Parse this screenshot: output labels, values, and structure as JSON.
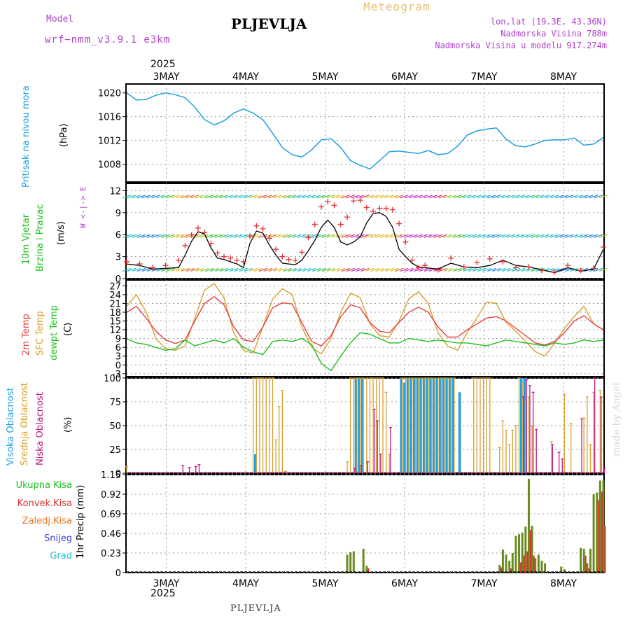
{
  "header": {
    "model_label": "Model",
    "model_name": "wrf−nmm_v3.9.1  e3km",
    "station": "PLJEVLJA",
    "product": "Meteogram",
    "coords": "lon,lat (19.3E, 43.36N)",
    "elevation": "Nadmorska Visina 788m",
    "model_elevation": "Nadmorska Visina u modelu 917.274m",
    "year": "2025",
    "footer_station": "PLJEVLJA",
    "credit": "made by Angel"
  },
  "colors": {
    "pressure": "#20a0e0",
    "wind_speed": "#000000",
    "gust": "#e83030",
    "temp2m": "#e84040",
    "sfc_temp": "#d8a030",
    "dewpt": "#20c020",
    "high_cloud": "#20a0e0",
    "mid_cloud": "#d8a030",
    "low_cloud": "#c01880",
    "total_precip": "#6a8a20",
    "conv_precip": "#e03030"
  },
  "chart_data": [
    {
      "type": "line",
      "id": "pressure",
      "title": "Pritisak na nivou mora",
      "ylabel": "(hPa)",
      "ylim": [
        1005,
        1021.5
      ],
      "yticks": [
        1008,
        1012,
        1016,
        1020
      ],
      "x_days": [
        "3MAY",
        "4MAY",
        "5MAY",
        "6MAY",
        "7MAY",
        "8MAY"
      ],
      "x": [
        0,
        3,
        6,
        9,
        12,
        15,
        18,
        21,
        24,
        27,
        30,
        33,
        36,
        39,
        42,
        45,
        48,
        51,
        54,
        57,
        60,
        63,
        66,
        69,
        72,
        75,
        78,
        81,
        84,
        87,
        90,
        93,
        96,
        99,
        102,
        105,
        108,
        111,
        114,
        117,
        120,
        123,
        126,
        129,
        132,
        135,
        138,
        141,
        144,
        147
      ],
      "values": [
        1020.0,
        1018.8,
        1018.9,
        1019.6,
        1020.0,
        1019.7,
        1019.2,
        1017.6,
        1015.5,
        1014.6,
        1015.3,
        1016.6,
        1017.3,
        1016.6,
        1015.5,
        1013.2,
        1010.8,
        1009.6,
        1009.2,
        1010.4,
        1012.1,
        1012.3,
        1010.8,
        1008.6,
        1007.8,
        1007.2,
        1008.6,
        1010.1,
        1010.2,
        1010.0,
        1009.8,
        1010.3,
        1009.6,
        1009.8,
        1011.0,
        1012.9,
        1013.6,
        1013.9,
        1014.1,
        1012.2,
        1011.1,
        1010.9,
        1011.4,
        1012.0,
        1012.1,
        1012.1,
        1012.4,
        1011.2,
        1011.4,
        1012.5
      ]
    },
    {
      "type": "line",
      "id": "wind",
      "title": "10m Vjetar",
      "subtitle": "Brzina i Pravac",
      "ylabel": "(m/s)",
      "compass": "W <-|-> E",
      "ylim": [
        0,
        13
      ],
      "yticks": [
        0,
        3,
        6,
        9,
        12
      ],
      "series": [
        {
          "name": "speed",
          "x": [
            0,
            4,
            8,
            12,
            16,
            18,
            20,
            22,
            24,
            26,
            28,
            30,
            32,
            34,
            36,
            38,
            40,
            42,
            44,
            46,
            48,
            50,
            52,
            54,
            56,
            58,
            60,
            62,
            64,
            66,
            68,
            70,
            72,
            74,
            76,
            78,
            80,
            82,
            84,
            86,
            88,
            90,
            92,
            96,
            100,
            104,
            108,
            112,
            116,
            120,
            124,
            128,
            132,
            136,
            140,
            144,
            147
          ],
          "values": [
            2.0,
            1.8,
            1.3,
            1.4,
            1.5,
            3.2,
            5.1,
            6.4,
            6.1,
            4.2,
            2.8,
            2.6,
            2.3,
            2.0,
            1.5,
            4.8,
            6.5,
            6.2,
            4.6,
            3.2,
            2.1,
            2.0,
            1.9,
            2.5,
            3.8,
            5.2,
            7.0,
            8.0,
            7.0,
            5.0,
            4.6,
            5.0,
            5.7,
            7.6,
            8.9,
            9.0,
            8.5,
            7.0,
            4.0,
            3.0,
            2.1,
            1.6,
            1.5,
            1.3,
            2.1,
            1.6,
            1.5,
            1.8,
            2.5,
            1.8,
            1.6,
            1.2,
            0.8,
            1.5,
            1.0,
            1.3,
            4.0
          ]
        },
        {
          "name": "gust",
          "x": [
            0,
            4,
            8,
            12,
            16,
            18,
            20,
            22,
            24,
            26,
            28,
            30,
            32,
            34,
            36,
            38,
            40,
            42,
            44,
            46,
            48,
            50,
            52,
            54,
            56,
            58,
            60,
            62,
            64,
            66,
            68,
            70,
            72,
            74,
            76,
            78,
            80,
            82,
            84,
            86,
            88,
            90,
            92,
            96,
            100,
            104,
            108,
            112,
            116,
            120,
            124,
            128,
            132,
            136,
            140,
            144,
            147
          ],
          "values": [
            2.3,
            2.0,
            1.5,
            1.8,
            2.5,
            4.5,
            6.0,
            6.9,
            6.3,
            4.8,
            3.5,
            3.0,
            2.8,
            2.5,
            2.3,
            5.8,
            7.2,
            6.8,
            5.5,
            4.0,
            3.0,
            2.6,
            2.5,
            3.6,
            5.6,
            7.4,
            9.8,
            10.5,
            10.0,
            7.4,
            8.4,
            10.6,
            10.7,
            9.7,
            9.2,
            9.6,
            9.6,
            9.4,
            7.5,
            5.0,
            2.5,
            1.5,
            1.8,
            1.2,
            2.8,
            1.6,
            2.2,
            2.7,
            2.3,
            1.5,
            1.6,
            1.1,
            0.9,
            1.8,
            1.1,
            1.4,
            4.3
          ]
        }
      ]
    },
    {
      "type": "line",
      "id": "temperature",
      "labels": [
        "2m Temp",
        "SFC Temp",
        "dewpt Temp"
      ],
      "ylabel": "(C)",
      "ylim": [
        -4,
        29
      ],
      "yticks": [
        -3,
        0,
        3,
        6,
        9,
        12,
        15,
        18,
        21,
        24,
        27
      ],
      "series": [
        {
          "name": "2m Temp",
          "x": [
            0,
            3,
            6,
            9,
            12,
            15,
            18,
            21,
            24,
            27,
            30,
            33,
            36,
            39,
            42,
            45,
            48,
            51,
            54,
            57,
            60,
            63,
            66,
            69,
            72,
            75,
            78,
            81,
            84,
            87,
            90,
            93,
            96,
            99,
            102,
            105,
            108,
            111,
            114,
            117,
            120,
            123,
            126,
            129,
            132,
            135,
            138,
            141,
            144,
            147
          ],
          "values": [
            18.0,
            20.0,
            16.0,
            11.5,
            8.5,
            7.3,
            8.5,
            15.0,
            21.0,
            23.3,
            20.5,
            13.0,
            8.5,
            8.0,
            13.0,
            19.5,
            21.2,
            20.8,
            14.5,
            8.0,
            6.5,
            10.0,
            16.5,
            20.5,
            19.5,
            14.5,
            11.5,
            11.0,
            14.5,
            18.0,
            19.7,
            18.0,
            13.0,
            9.5,
            9.5,
            12.0,
            14.0,
            16.0,
            16.5,
            15.0,
            12.5,
            10.0,
            7.5,
            6.8,
            8.0,
            11.0,
            15.0,
            16.8,
            14.0,
            12.0
          ]
        },
        {
          "name": "SFC Temp",
          "x": [
            0,
            3,
            6,
            9,
            12,
            15,
            18,
            21,
            24,
            27,
            30,
            33,
            36,
            39,
            42,
            45,
            48,
            51,
            54,
            57,
            60,
            63,
            66,
            69,
            72,
            75,
            78,
            81,
            84,
            87,
            90,
            93,
            96,
            99,
            102,
            105,
            108,
            111,
            114,
            117,
            120,
            123,
            126,
            129,
            132,
            135,
            138,
            141,
            144,
            147
          ],
          "values": [
            20.0,
            24.0,
            18.0,
            9.0,
            5.5,
            5.0,
            6.5,
            16.0,
            25.5,
            27.8,
            23.0,
            11.0,
            5.0,
            4.0,
            13.0,
            22.5,
            26.0,
            24.0,
            13.0,
            6.0,
            3.8,
            9.0,
            18.0,
            24.5,
            23.0,
            14.0,
            10.0,
            9.5,
            15.0,
            22.5,
            25.0,
            21.0,
            11.0,
            6.5,
            5.0,
            11.0,
            16.0,
            21.5,
            21.0,
            14.5,
            11.5,
            8.0,
            4.5,
            3.0,
            7.5,
            12.5,
            16.5,
            20.0,
            14.0,
            12.0
          ]
        },
        {
          "name": "dewpt Temp",
          "x": [
            0,
            3,
            6,
            9,
            12,
            15,
            18,
            21,
            24,
            27,
            30,
            33,
            36,
            39,
            42,
            45,
            48,
            51,
            54,
            57,
            60,
            63,
            66,
            69,
            72,
            75,
            78,
            81,
            84,
            87,
            90,
            93,
            96,
            99,
            102,
            105,
            108,
            111,
            114,
            117,
            120,
            123,
            126,
            129,
            132,
            135,
            138,
            141,
            144,
            147
          ],
          "values": [
            9.0,
            7.5,
            7.0,
            6.0,
            5.0,
            5.5,
            8.5,
            6.5,
            7.5,
            8.5,
            7.5,
            9.0,
            6.0,
            4.5,
            3.5,
            8.0,
            8.5,
            8.0,
            9.0,
            7.0,
            0.5,
            -2.0,
            3.0,
            7.5,
            11.0,
            10.5,
            9.0,
            7.5,
            7.5,
            9.0,
            8.5,
            8.0,
            8.5,
            8.0,
            7.5,
            7.5,
            7.0,
            6.5,
            7.5,
            8.5,
            8.0,
            7.5,
            7.0,
            6.5,
            7.5,
            7.0,
            7.5,
            8.5,
            8.0,
            8.5
          ]
        }
      ]
    },
    {
      "type": "bar",
      "id": "clouds",
      "labels": [
        "Visoka Oblacnost",
        "Srednja Oblacnost",
        "Niska Oblacnost"
      ],
      "ylabel": "(%)",
      "ylim": [
        0,
        100
      ],
      "yticks": [
        0,
        25,
        50,
        75,
        100
      ],
      "series": [
        {
          "name": "Visoka Oblacnost",
          "x": [
            40,
            71,
            72,
            73,
            85,
            86,
            87,
            88,
            89,
            90,
            91,
            92,
            93,
            94,
            95,
            96,
            97,
            98,
            99,
            100,
            101,
            103,
            122,
            123
          ],
          "values": [
            20,
            100,
            100,
            100,
            100,
            95,
            100,
            100,
            100,
            100,
            100,
            100,
            100,
            100,
            100,
            100,
            100,
            100,
            100,
            100,
            100,
            85,
            100,
            100
          ]
        },
        {
          "name": "Srednja Oblacnost",
          "x": [
            0,
            39,
            40,
            41,
            42,
            43,
            44,
            45,
            46,
            47,
            48,
            49,
            50,
            51,
            68,
            69,
            70,
            71,
            72,
            73,
            74,
            75,
            76,
            77,
            78,
            79,
            80,
            81,
            85,
            86,
            87,
            88,
            89,
            90,
            91,
            92,
            93,
            94,
            95,
            96,
            97,
            98,
            99,
            100,
            101,
            107,
            108,
            109,
            110,
            111,
            112,
            115,
            116,
            117,
            118,
            119,
            120,
            121,
            122,
            123,
            124,
            125,
            131,
            135,
            137,
            141,
            142,
            143,
            144,
            146,
            147
          ],
          "values": [
            7,
            100,
            100,
            100,
            100,
            100,
            100,
            100,
            35,
            70,
            87,
            2,
            0,
            0,
            12,
            100,
            100,
            100,
            100,
            100,
            100,
            100,
            100,
            100,
            100,
            100,
            85,
            20,
            100,
            100,
            100,
            100,
            100,
            100,
            100,
            100,
            100,
            100,
            100,
            100,
            100,
            100,
            100,
            100,
            100,
            100,
            100,
            100,
            100,
            100,
            100,
            27,
            55,
            45,
            30,
            45,
            50,
            100,
            95,
            75,
            80,
            50,
            33,
            83,
            52,
            58,
            80,
            30,
            85,
            87,
            0
          ],
          "note": "approx"
        },
        {
          "name": "Niska Oblacnost",
          "x": [
            17,
            19,
            21,
            22,
            70,
            72,
            74,
            76,
            77,
            78,
            81,
            122,
            123,
            124,
            125,
            126,
            131,
            133,
            134,
            140,
            144,
            146,
            147
          ],
          "values": [
            8,
            6,
            7,
            9,
            5,
            8,
            12,
            67,
            55,
            20,
            48,
            80,
            98,
            92,
            85,
            46,
            30,
            22,
            15,
            57,
            100,
            80,
            5
          ]
        }
      ]
    },
    {
      "type": "bar",
      "id": "precip",
      "labels": [
        "Ukupna Kisa",
        "Konvek.Kisa",
        "Zaledj.Kisa",
        "Snijeg",
        "Grad"
      ],
      "ylabel": "1hr Precip (mm)",
      "ylim": [
        0,
        1.15
      ],
      "yticks": [
        0,
        0.23,
        0.46,
        0.69,
        0.92,
        1.15
      ],
      "series": [
        {
          "name": "Ukupna Kisa",
          "x": [
            68,
            69,
            70,
            73,
            74,
            115,
            116,
            117,
            118,
            119,
            120,
            121,
            122,
            123,
            124,
            125,
            126,
            127,
            128,
            129,
            134,
            135,
            140,
            141,
            142,
            143,
            144,
            145,
            146,
            147
          ],
          "values": [
            0.21,
            0.24,
            0.25,
            0.28,
            0.08,
            0.09,
            0.27,
            0.21,
            0.14,
            0.23,
            0.43,
            0.45,
            0.47,
            0.54,
            1.1,
            0.55,
            0.17,
            0.21,
            0.14,
            0.11,
            0.07,
            0.04,
            0.29,
            0.28,
            0.11,
            0.28,
            0.92,
            0.94,
            1.08,
            1.08
          ],
          "note": "approx"
        },
        {
          "name": "Konvek.Kisa",
          "x": [
            74,
            115,
            118,
            121,
            122,
            123,
            124,
            125,
            141,
            142,
            145,
            146,
            147
          ],
          "values": [
            0.05,
            0.06,
            0.05,
            0.12,
            0.2,
            0.25,
            0.5,
            0.2,
            0.2,
            0.05,
            0.85,
            0.95,
            0.55
          ]
        }
      ]
    }
  ]
}
